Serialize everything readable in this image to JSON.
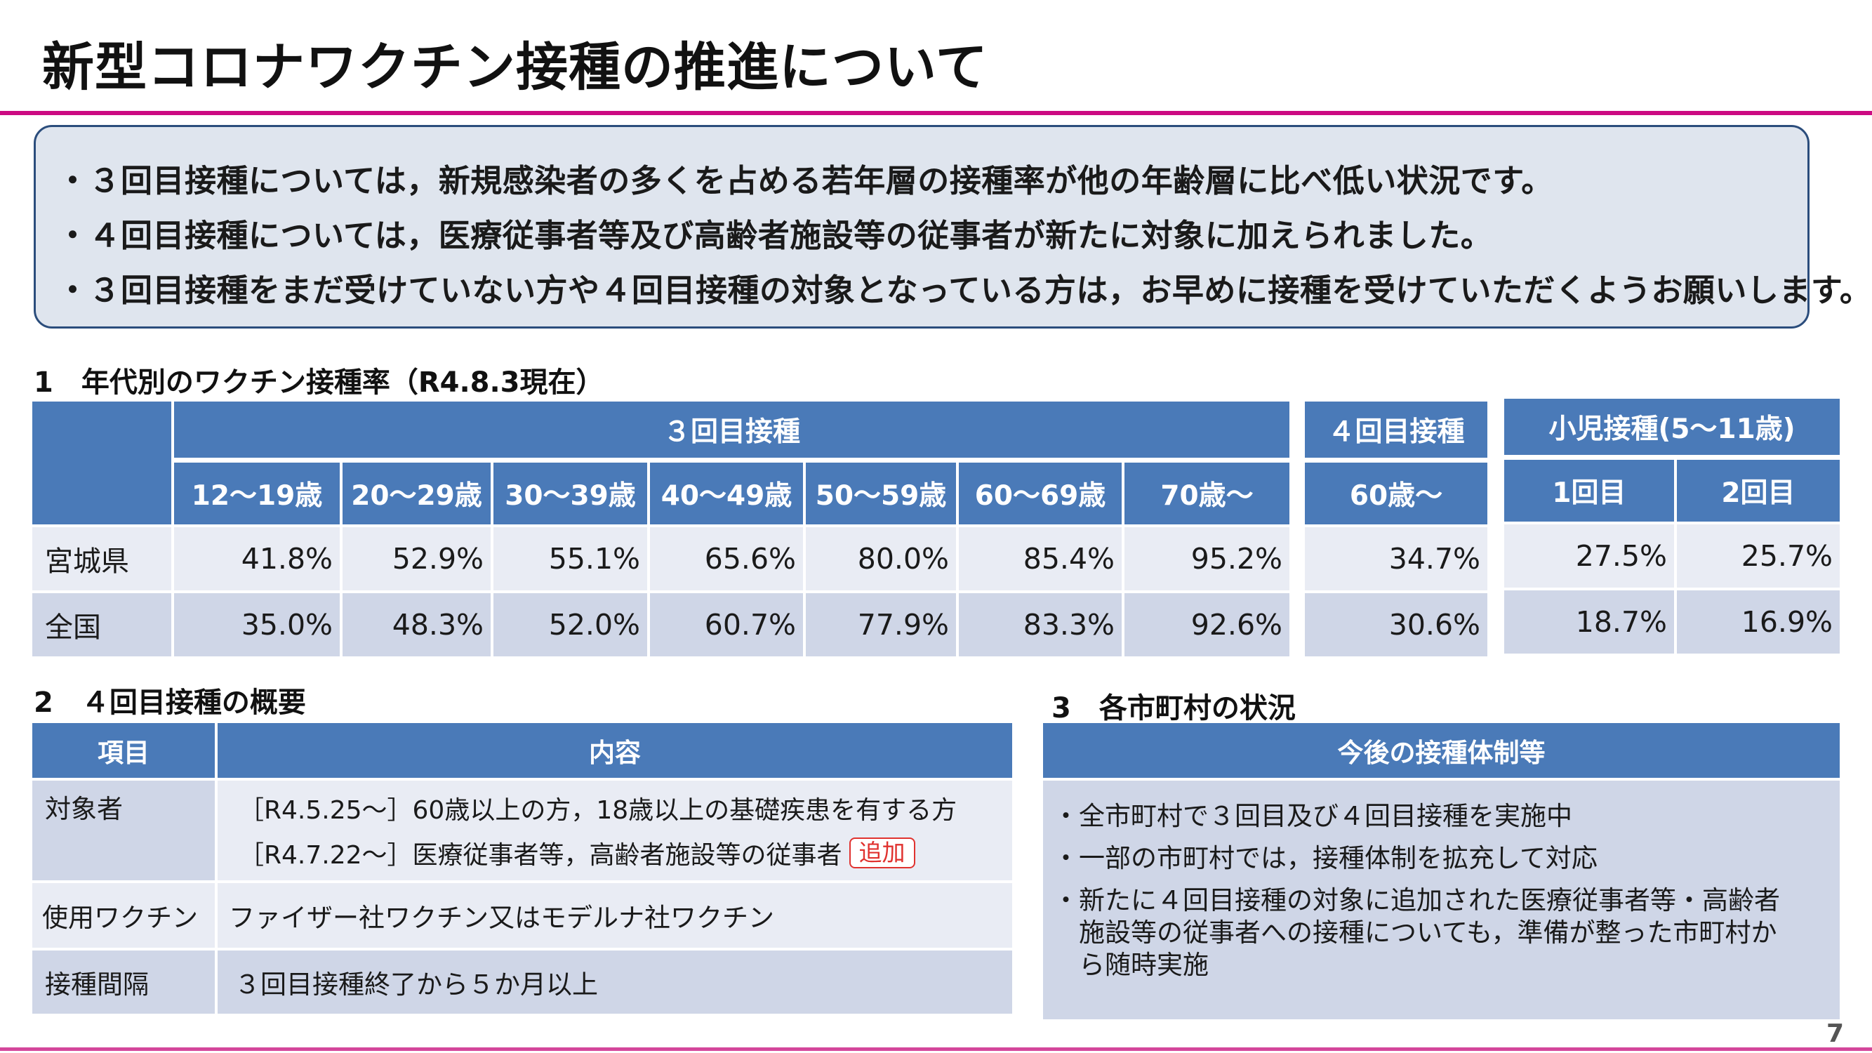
{
  "title": "新型コロナワクチン接種の推進について",
  "page_number": "7",
  "summary": {
    "bullets": [
      "・３回目接種については，新規感染者の多くを占める若年層の接種率が他の年齢層に比べ低い状況です。",
      "・４回目接種については，医療従事者等及び高齢者施設等の従事者が新たに対象に加えられました。",
      "・３回目接種をまだ受けていない方や４回目接種の対象となっている方は，お早めに接種を受けていただくようお願いします。"
    ]
  },
  "section1": {
    "heading": "1　年代別のワクチン接種率（R4.8.3現在）",
    "dose3": {
      "header": "３回目接種",
      "columns": [
        "12～19歳",
        "20～29歳",
        "30～39歳",
        "40～49歳",
        "50～59歳",
        "60～69歳",
        "70歳～"
      ]
    },
    "dose4": {
      "header": "４回目接種",
      "columns": [
        "60歳～"
      ]
    },
    "pediatric": {
      "header": "小児接種(5～11歳)",
      "columns": [
        "1回目",
        "2回目"
      ]
    },
    "rows": [
      {
        "label": "宮城県",
        "dose3": [
          "41.8%",
          "52.9%",
          "55.1%",
          "65.6%",
          "80.0%",
          "85.4%",
          "95.2%"
        ],
        "dose4": [
          "34.7%"
        ],
        "pediatric": [
          "27.5%",
          "25.7%"
        ]
      },
      {
        "label": "全国",
        "dose3": [
          "35.0%",
          "48.3%",
          "52.0%",
          "60.7%",
          "77.9%",
          "83.3%",
          "92.6%"
        ],
        "dose4": [
          "30.6%"
        ],
        "pediatric": [
          "18.7%",
          "16.9%"
        ]
      }
    ]
  },
  "section2": {
    "heading": "2　４回目接種の概要",
    "header": {
      "item": "項目",
      "content": "内容"
    },
    "rows": [
      {
        "item": "対象者",
        "lines": [
          "［R4.5.25～］60歳以上の方，18歳以上の基礎疾患を有する方",
          "［R4.7.22～］医療従事者等，高齢者施設等の従事者"
        ],
        "badge": "追加"
      },
      {
        "item": "使用ワクチン",
        "content": "ファイザー社ワクチン又はモデルナ社ワクチン"
      },
      {
        "item": "接種間隔",
        "content": "３回目接種終了から５か月以上"
      }
    ]
  },
  "section3": {
    "heading": "3　各市町村の状況",
    "header": "今後の接種体制等",
    "lines": [
      "・全市町村で３回目及び４回目接種を実施中",
      "・一部の市町村では，接種体制を拡充して対応",
      "・新たに４回目接種の対象に追加された医療従事者等・高齢者",
      "　施設等の従事者への接種についても，準備が整った市町村か",
      "　ら随時実施"
    ]
  },
  "colors": {
    "header_blue": "#4a7ab8",
    "row_light": "#e9ecf4",
    "row_dark": "#cfd6e7",
    "accent_magenta": "#cc0a82",
    "badge_red": "#e0322f"
  }
}
